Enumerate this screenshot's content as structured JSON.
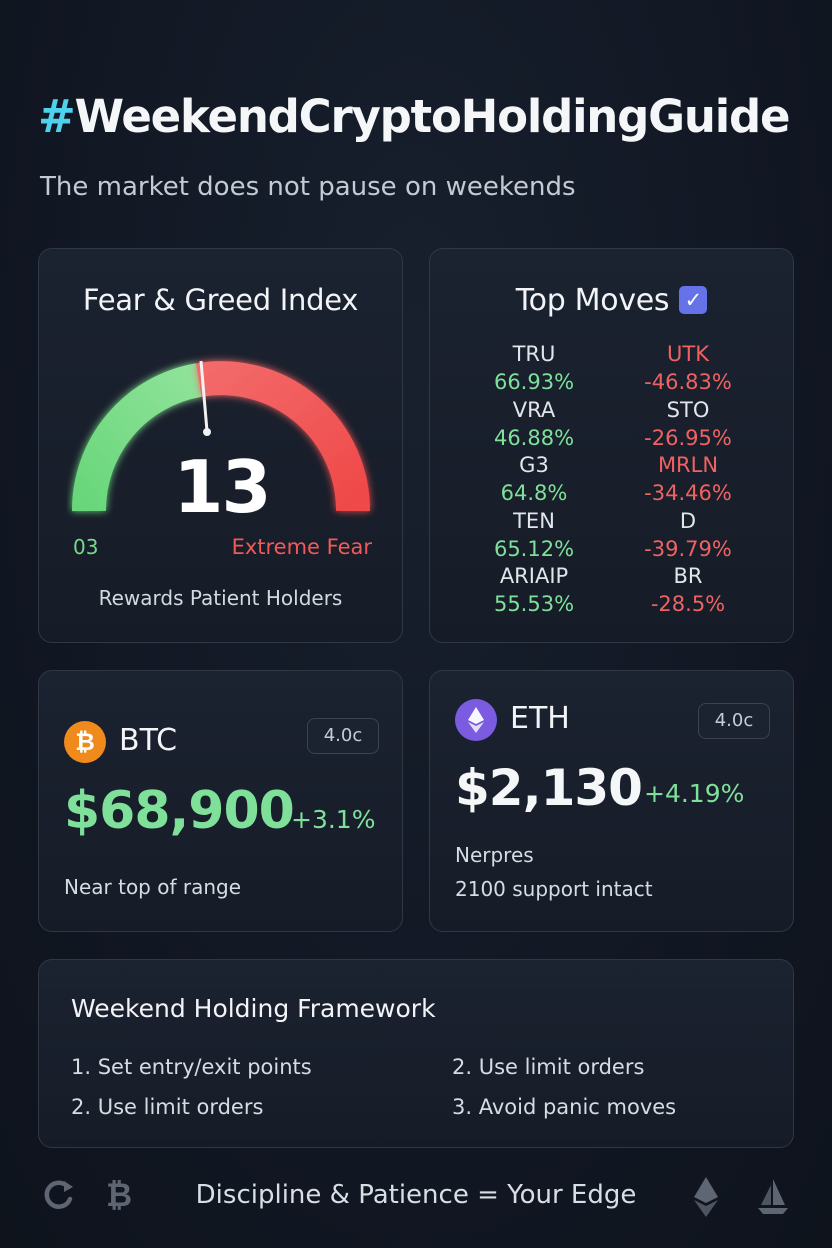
{
  "header": {
    "hash": "#",
    "title": "WeekendCryptoHoldingGuide",
    "subtitle": "The market does not pause on weekends"
  },
  "fear_greed": {
    "title": "Fear & Greed Index",
    "value": "13",
    "low_label": "03",
    "classification": "Extreme Fear",
    "footer": "Rewards Patient Holders",
    "colors": {
      "greed": "#6fd67f",
      "fear": "#f05454"
    }
  },
  "top_moves": {
    "title": "Top Moves",
    "check_icon": "check-box-icon",
    "gainers": [
      {
        "symbol": "TRU",
        "change": "66.93%"
      },
      {
        "symbol": "VRA",
        "change": "46.88%"
      },
      {
        "symbol": "G3",
        "change": "64.8%"
      },
      {
        "symbol": "TEN",
        "change": "65.12%"
      },
      {
        "symbol": "ARIAIP",
        "change": "55.53%"
      }
    ],
    "losers": [
      {
        "symbol": "UTK",
        "change": "-46.83%"
      },
      {
        "symbol": "STO",
        "change": "-26.95%"
      },
      {
        "symbol": "MRLN",
        "change": "-34.46%"
      },
      {
        "symbol": "D",
        "change": "-39.79%"
      },
      {
        "symbol": "BR",
        "change": "-28.5%"
      }
    ]
  },
  "btc": {
    "name": "BTC",
    "icon_glyph": "₿",
    "tag": "4.0c",
    "price": "$68,900",
    "change": "+3.1%",
    "note": "Near top of range"
  },
  "eth": {
    "name": "ETH",
    "tag": "4.0c",
    "price": "$2,130",
    "change": "+4.19%",
    "note1": "Nerpres",
    "note2": "2100 support intact"
  },
  "framework": {
    "title": "Weekend Holding Framework",
    "items": [
      "1. Set entry/exit points",
      "2. Use limit orders",
      "2. Use limit orders",
      "3. Avoid panic moves"
    ]
  },
  "footer": {
    "tagline": "Discipline & Patience = Your Edge"
  }
}
